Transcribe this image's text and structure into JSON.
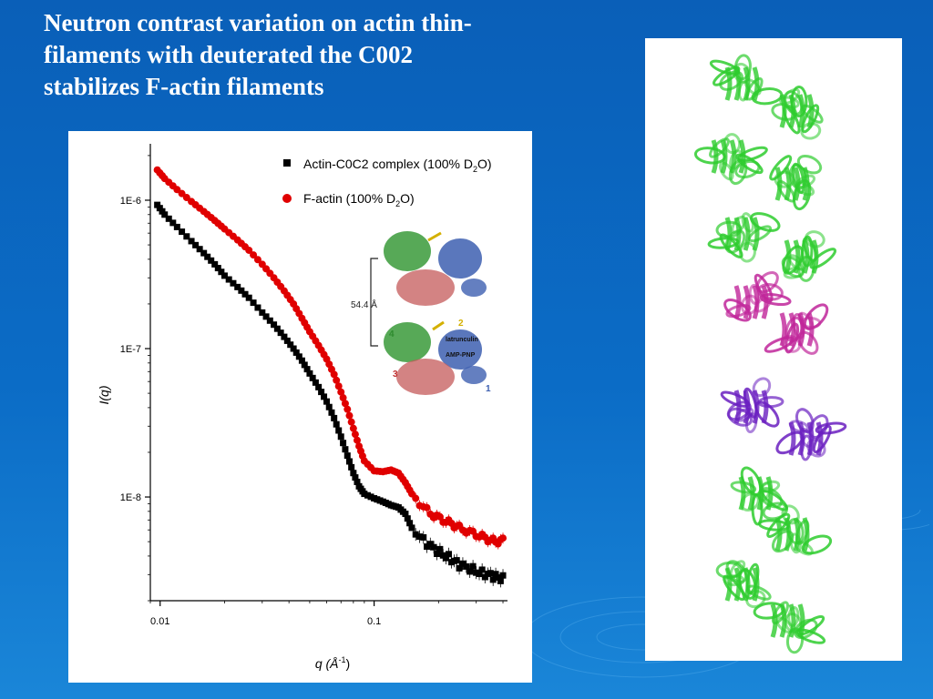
{
  "slide": {
    "title_lines": [
      "Neutron contrast variation on actin thin-",
      "filaments with deuterated the C002",
      "stabilizes F-actin filaments"
    ]
  },
  "colors": {
    "background": "#0b6cc6",
    "series_complex": "#000000",
    "series_factin": "#e00000",
    "actin_green": "#2ecc2e",
    "actin_magenta": "#c0269a",
    "actin_purple": "#6a1fc0"
  },
  "chart_data": {
    "type": "scatter",
    "x_scale": "log",
    "y_scale": "log",
    "xlim": [
      0.009,
      0.42
    ],
    "ylim": [
      2e-09,
      2.4e-06
    ],
    "x_ticks": [
      {
        "value": 0.01,
        "label": "0.01"
      },
      {
        "value": 0.1,
        "label": "0.1"
      }
    ],
    "y_ticks": [
      {
        "value": 1e-06,
        "label": "1E-6"
      },
      {
        "value": 1e-07,
        "label": "1E-7"
      },
      {
        "value": 1e-08,
        "label": "1E-8"
      }
    ],
    "xlabel": {
      "main": "q (Å",
      "sup": "-1",
      "tail": ")"
    },
    "ylabel": "I(q)",
    "legend_position": "top-right",
    "series": [
      {
        "name_parts": [
          "Actin-C0C2 complex (100% D",
          "2",
          "O)"
        ],
        "marker": "square",
        "points": [
          [
            0.0097,
            9.3e-07
          ],
          [
            0.0105,
            8e-07
          ],
          [
            0.012,
            6.6e-07
          ],
          [
            0.014,
            5.3e-07
          ],
          [
            0.016,
            4.4e-07
          ],
          [
            0.018,
            3.7e-07
          ],
          [
            0.02,
            3.1e-07
          ],
          [
            0.023,
            2.6e-07
          ],
          [
            0.026,
            2.2e-07
          ],
          [
            0.03,
            1.75e-07
          ],
          [
            0.034,
            1.45e-07
          ],
          [
            0.038,
            1.2e-07
          ],
          [
            0.042,
            1e-07
          ],
          [
            0.046,
            8.3e-08
          ],
          [
            0.05,
            6.8e-08
          ],
          [
            0.055,
            5.5e-08
          ],
          [
            0.06,
            4.4e-08
          ],
          [
            0.065,
            3.4e-08
          ],
          [
            0.07,
            2.55e-08
          ],
          [
            0.075,
            1.9e-08
          ],
          [
            0.08,
            1.45e-08
          ],
          [
            0.085,
            1.18e-08
          ],
          [
            0.09,
            1.05e-08
          ],
          [
            0.1,
            9.8e-09
          ],
          [
            0.11,
            9.3e-09
          ],
          [
            0.12,
            8.8e-09
          ],
          [
            0.13,
            8.5e-09
          ],
          [
            0.14,
            7.7e-09
          ],
          [
            0.15,
            6.2e-09
          ],
          [
            0.17,
            5.1e-09
          ],
          [
            0.19,
            4.5e-09
          ],
          [
            0.21,
            4.1e-09
          ],
          [
            0.23,
            3.8e-09
          ],
          [
            0.25,
            3.5e-09
          ],
          [
            0.28,
            3.3e-09
          ],
          [
            0.31,
            3.1e-09
          ],
          [
            0.34,
            3e-09
          ],
          [
            0.37,
            2.9e-09
          ],
          [
            0.4,
            2.8e-09
          ]
        ]
      },
      {
        "name_parts": [
          "F-actin (100% D",
          "2",
          "O)"
        ],
        "marker": "circle",
        "points": [
          [
            0.0097,
            1.6e-06
          ],
          [
            0.0105,
            1.4e-06
          ],
          [
            0.012,
            1.18e-06
          ],
          [
            0.014,
            9.8e-07
          ],
          [
            0.016,
            8.4e-07
          ],
          [
            0.018,
            7.3e-07
          ],
          [
            0.02,
            6.4e-07
          ],
          [
            0.023,
            5.4e-07
          ],
          [
            0.026,
            4.6e-07
          ],
          [
            0.03,
            3.7e-07
          ],
          [
            0.034,
            3e-07
          ],
          [
            0.038,
            2.45e-07
          ],
          [
            0.042,
            2e-07
          ],
          [
            0.046,
            1.6e-07
          ],
          [
            0.05,
            1.3e-07
          ],
          [
            0.055,
            1.05e-07
          ],
          [
            0.06,
            8.5e-08
          ],
          [
            0.065,
            6.7e-08
          ],
          [
            0.07,
            5.1e-08
          ],
          [
            0.075,
            3.9e-08
          ],
          [
            0.08,
            2.9e-08
          ],
          [
            0.085,
            2.2e-08
          ],
          [
            0.09,
            1.75e-08
          ],
          [
            0.1,
            1.5e-08
          ],
          [
            0.11,
            1.48e-08
          ],
          [
            0.12,
            1.52e-08
          ],
          [
            0.13,
            1.45e-08
          ],
          [
            0.14,
            1.25e-08
          ],
          [
            0.15,
            1.05e-08
          ],
          [
            0.17,
            8.5e-09
          ],
          [
            0.19,
            7.5e-09
          ],
          [
            0.21,
            7e-09
          ],
          [
            0.23,
            6.6e-09
          ],
          [
            0.25,
            6.2e-09
          ],
          [
            0.28,
            5.8e-09
          ],
          [
            0.31,
            5.5e-09
          ],
          [
            0.34,
            5.2e-09
          ],
          [
            0.37,
            5e-09
          ],
          [
            0.4,
            5.1e-09
          ]
        ]
      }
    ]
  },
  "inset": {
    "distance_label": "54.4 Å",
    "labels": {
      "latrunculin": "latrunculin",
      "amp_pnp": "AMP-PNP",
      "subdomain_1": "1",
      "subdomain_2": "2",
      "subdomain_3": "3",
      "subdomain_4": "4"
    }
  }
}
